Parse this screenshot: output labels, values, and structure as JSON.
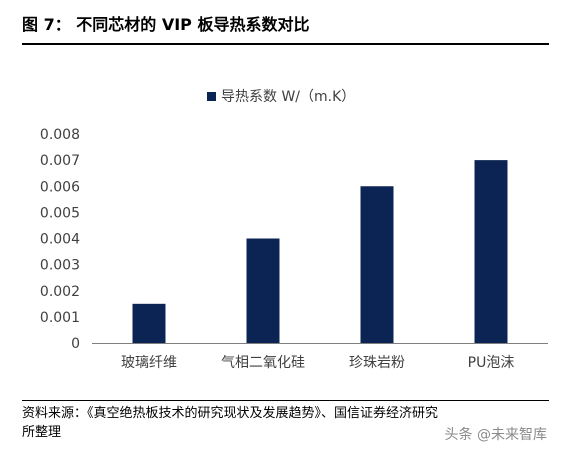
{
  "figure": {
    "header": "图 7：  不同芯材的 VIP 板导热系数对比",
    "source_line1": "资料来源：《真空绝热板技术的研究现状及发展趋势》、国信证券经济研究",
    "source_line2": "所整理",
    "watermark": "头条 @未来智库"
  },
  "chart_data": {
    "type": "bar",
    "categories": [
      "玻璃纤维",
      "气相二氧化硅",
      "珍珠岩粉",
      "PU泡沫"
    ],
    "series": [
      {
        "name": "导热系数 W/（m.K）",
        "values": [
          0.0015,
          0.004,
          0.006,
          0.007
        ]
      }
    ],
    "ylim": [
      0,
      0.008
    ],
    "yticks": [
      "0",
      "0.001",
      "0.002",
      "0.003",
      "0.004",
      "0.005",
      "0.006",
      "0.007",
      "0.008"
    ],
    "legend_position": "top-center",
    "grid": false,
    "colors": {
      "bar": "#0b2453",
      "axis": "#808080",
      "text": "#404040"
    }
  }
}
